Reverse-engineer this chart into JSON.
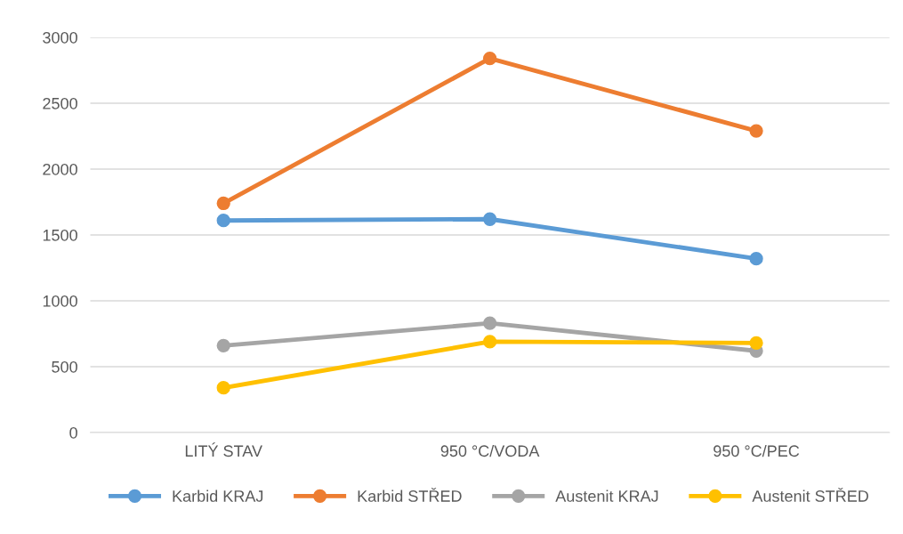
{
  "chart_data": {
    "type": "line",
    "categories": [
      "LITÝ STAV",
      "950 °C/VODA",
      "950 °C/PEC"
    ],
    "series": [
      {
        "name": "Karbid KRAJ",
        "color": "#5b9bd5",
        "values": [
          1610,
          1620,
          1320
        ]
      },
      {
        "name": "Karbid STŘED",
        "color": "#ed7d31",
        "values": [
          1740,
          2840,
          2290
        ]
      },
      {
        "name": "Austenit KRAJ",
        "color": "#a5a5a5",
        "values": [
          660,
          830,
          620
        ]
      },
      {
        "name": "Austenit STŘED",
        "color": "#ffc000",
        "values": [
          340,
          690,
          680
        ]
      }
    ],
    "ylim": [
      0,
      3000
    ],
    "yticks": [
      0,
      500,
      1000,
      1500,
      2000,
      2500,
      3000
    ],
    "grid": "y",
    "legend": "bottom",
    "marker": "circle",
    "line_style": "solid"
  }
}
